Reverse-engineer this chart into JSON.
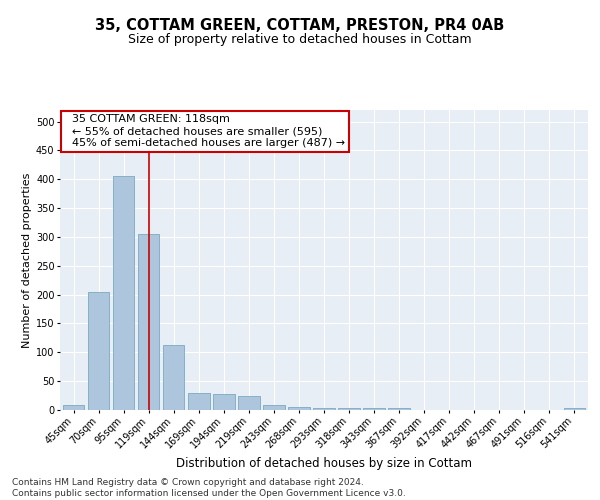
{
  "title": "35, COTTAM GREEN, COTTAM, PRESTON, PR4 0AB",
  "subtitle": "Size of property relative to detached houses in Cottam",
  "xlabel": "Distribution of detached houses by size in Cottam",
  "ylabel": "Number of detached properties",
  "categories": [
    "45sqm",
    "70sqm",
    "95sqm",
    "119sqm",
    "144sqm",
    "169sqm",
    "194sqm",
    "219sqm",
    "243sqm",
    "268sqm",
    "293sqm",
    "318sqm",
    "343sqm",
    "367sqm",
    "392sqm",
    "417sqm",
    "442sqm",
    "467sqm",
    "491sqm",
    "516sqm",
    "541sqm"
  ],
  "values": [
    8,
    205,
    405,
    305,
    112,
    30,
    28,
    25,
    8,
    6,
    4,
    4,
    4,
    4,
    0,
    0,
    0,
    0,
    0,
    0,
    4
  ],
  "bar_color": "#adc6de",
  "bar_edge_color": "#7aaabf",
  "vline_index": 3,
  "vline_color": "#cc0000",
  "annotation_text": "  35 COTTAM GREEN: 118sqm\n  ← 55% of detached houses are smaller (595)\n  45% of semi-detached houses are larger (487) →",
  "annotation_box_color": "#ffffff",
  "annotation_box_edge_color": "#cc0000",
  "ylim": [
    0,
    520
  ],
  "yticks": [
    0,
    50,
    100,
    150,
    200,
    250,
    300,
    350,
    400,
    450,
    500
  ],
  "background_color": "#e8eef5",
  "footer_line1": "Contains HM Land Registry data © Crown copyright and database right 2024.",
  "footer_line2": "Contains public sector information licensed under the Open Government Licence v3.0.",
  "title_fontsize": 10.5,
  "subtitle_fontsize": 9,
  "xlabel_fontsize": 8.5,
  "ylabel_fontsize": 8,
  "tick_fontsize": 7,
  "annotation_fontsize": 8,
  "footer_fontsize": 6.5
}
